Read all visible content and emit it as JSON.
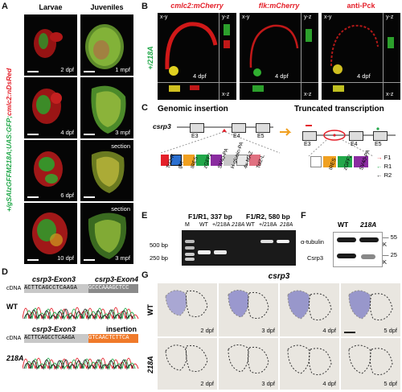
{
  "panels": {
    "A": {
      "label": "A",
      "col_larvae": "Larvae",
      "col_juveniles": "Juveniles",
      "vertical_label_green": "+/gSAIzGFFM218A;UAS:GFP;",
      "vertical_label_red": "cmlc2:nDsRed",
      "rows": [
        {
          "larva_age": "2 dpf",
          "juvenile_age": "1 mpf",
          "section": ""
        },
        {
          "larva_age": "4 dpf",
          "juvenile_age": "3 mpf",
          "section": ""
        },
        {
          "larva_age": "6 dpf",
          "juvenile_age": "",
          "section": "section"
        },
        {
          "larva_age": "10 dpf",
          "juvenile_age": "3 mpf",
          "section": "section"
        }
      ]
    },
    "B": {
      "label": "B",
      "side_label": "+/218A",
      "titles": [
        "cmlc2:mCherry",
        "flk:mCherry",
        "anti-Pck"
      ],
      "age": "4 dpf",
      "axes": {
        "xy": "x-y",
        "yz": "y-z",
        "xz": "x-z"
      }
    },
    "C": {
      "label": "C",
      "title_left": "Genomic insertion",
      "title_right": "Truncated transcription",
      "gene": "csrp3",
      "exons_left": [
        "E3",
        "E4",
        "E5"
      ],
      "exons_right": [
        "E3",
        "E4",
        "E5"
      ],
      "cassette": [
        "Tol2-R",
        "gbt",
        "IRES",
        "zGFF2",
        "SV40-PA",
        "H-globin-PA",
        "4x MAZ",
        "Tol2-L"
      ],
      "cassette_right": [
        "IRES",
        "zGFF2",
        "SV40-PA"
      ],
      "primers": [
        "F1",
        "R1",
        "R2"
      ]
    },
    "D": {
      "label": "D",
      "exon3": "csrp3-Exon3",
      "exon4": "csrp3-Exon4",
      "insertion": "insertion",
      "cdna": "cDNA",
      "wt_label": "WT",
      "mut_label": "218A",
      "wt_seq_gray": "ACTTCAGCCTCAAGA",
      "wt_seq_exon4": "GCCCAAAGCTCC",
      "mut_seq_gray": "ACTTCAGCCTCAAGA",
      "mut_seq_ins": "GTCAACTCTTCA"
    },
    "E": {
      "label": "E",
      "f1r1": "F1/R1, 337 bp",
      "f1r2": "F1/R2, 580 bp",
      "lanes": [
        "M",
        "WT",
        "+/218A",
        "218A",
        "WT",
        "+/218A",
        "218A"
      ],
      "size_500": "500 bp",
      "size_250": "250 bp"
    },
    "F": {
      "label": "F",
      "lanes": [
        "WT",
        "218A"
      ],
      "rows": [
        "α-tubulin",
        "Csrp3"
      ],
      "size_55": "55 K",
      "size_25": "25 K"
    },
    "G": {
      "label": "G",
      "title": "csrp3",
      "row_wt": "WT",
      "row_mut": "218A",
      "ages": [
        "2 dpf",
        "3 dpf",
        "4 dpf",
        "5 dpf"
      ]
    }
  },
  "colors": {
    "red": "#e4202a",
    "green": "#22a84a",
    "orange": "#f0a020"
  }
}
